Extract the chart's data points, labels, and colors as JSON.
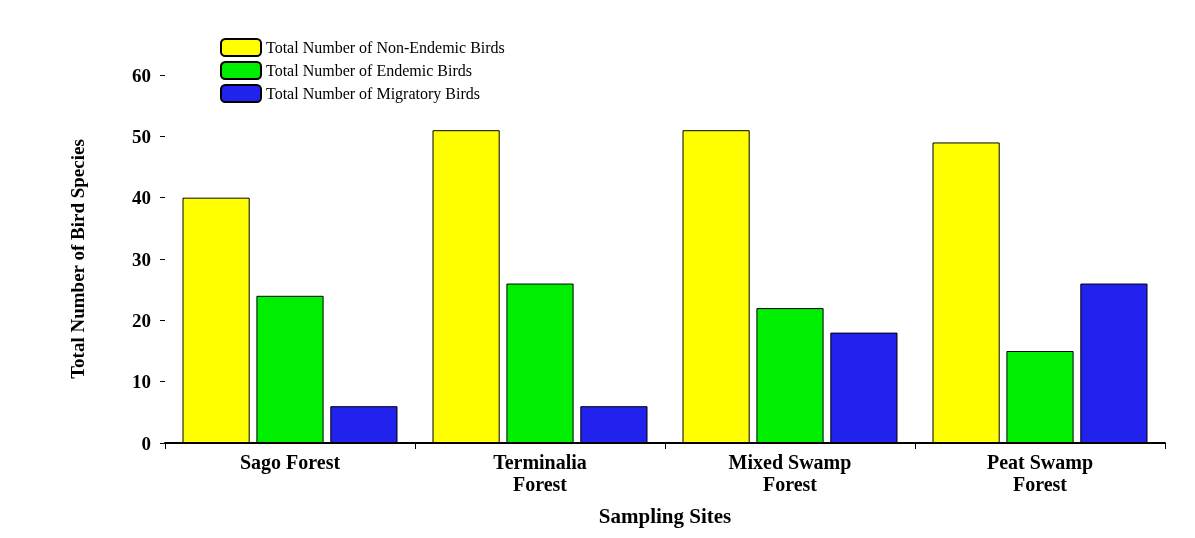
{
  "chart_data": {
    "type": "bar",
    "xlabel": "Sampling Sites",
    "ylabel": "Total Number of Bird Species",
    "categories": [
      "Sago Forest",
      "Terminalia\nForest",
      "Mixed Swamp\nForest",
      "Peat Swamp\nForest"
    ],
    "series": [
      {
        "name": "Total Number of Non-Endemic Birds",
        "color": "#ffff00",
        "values": [
          40,
          51,
          51,
          49
        ]
      },
      {
        "name": "Total Number of Endemic Birds",
        "color": "#00ee00",
        "values": [
          24,
          26,
          22,
          15
        ]
      },
      {
        "name": "Total Number of Migratory Birds",
        "color": "#2222ee",
        "values": [
          6,
          6,
          18,
          26
        ]
      }
    ],
    "ylim": [
      0,
      60
    ],
    "yticks": [
      0,
      10,
      20,
      30,
      40,
      50,
      60
    ],
    "grid": false,
    "legend": "top left"
  }
}
